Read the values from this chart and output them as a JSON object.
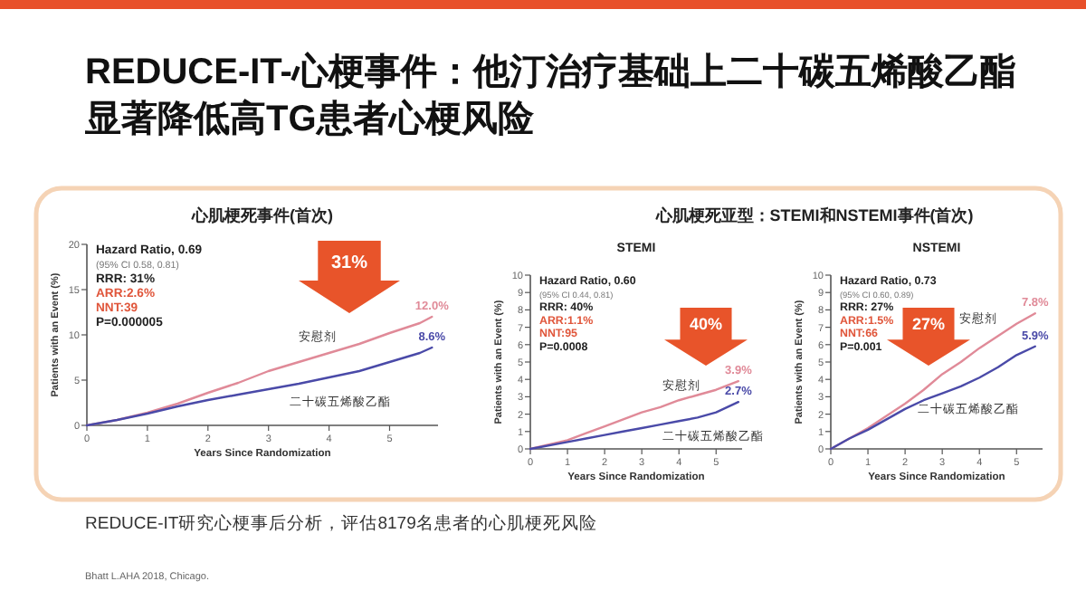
{
  "chart_data": [
    {
      "type": "other",
      "title": "REDUCE-IT-心梗事件：他汀治疗基础上二十碳五烯酸乙酯显著降低高TG患者心梗风险",
      "annotations": [
        "REDUCE-IT研究心梗事后分析，评估8179名患者的心肌梗死风险",
        "Bhatt L.AHA 2018, Chicago."
      ]
    },
    {
      "type": "line",
      "title": "心肌梗死事件(首次)",
      "xlabel": "Years Since Randomization",
      "ylabel": "Patients with an Event (%)",
      "xlim": [
        0,
        5.8
      ],
      "xticks": [
        0,
        1,
        2,
        3,
        4,
        5
      ],
      "ylim": [
        0,
        20
      ],
      "yticks": [
        0,
        5,
        10,
        15,
        20
      ],
      "x": [
        0,
        0.5,
        1,
        1.5,
        2,
        2.5,
        3,
        3.5,
        4,
        4.5,
        5,
        5.5,
        5.7
      ],
      "series": [
        {
          "name": "安慰剂",
          "color": "#e08a98",
          "values": [
            0,
            0.6,
            1.4,
            2.4,
            3.6,
            4.7,
            6.0,
            7.0,
            8.0,
            9.0,
            10.2,
            11.3,
            12.0
          ],
          "value_labels": [
            null,
            null,
            null,
            null,
            null,
            null,
            null,
            null,
            null,
            null,
            null,
            null,
            "12.0%"
          ]
        },
        {
          "name": "二十碳五烯酸乙酯",
          "color": "#4a4aa8",
          "values": [
            0,
            0.6,
            1.3,
            2.1,
            2.8,
            3.4,
            4.0,
            4.6,
            5.3,
            6.0,
            7.0,
            8.0,
            8.6
          ],
          "value_labels": [
            null,
            null,
            null,
            null,
            null,
            null,
            null,
            null,
            null,
            null,
            null,
            null,
            "8.6%"
          ]
        }
      ],
      "annotations": [
        "Hazard Ratio, 0.69",
        "(95% CI 0.58, 0.81)",
        "RRR: 31%",
        "ARR:2.6%",
        "NNT:39",
        "P=0.000005",
        "31%"
      ]
    },
    {
      "type": "line",
      "subtitle": "心肌梗死亚型：STEMI和NSTEMI事件(首次)",
      "title": "STEMI",
      "xlabel": "Years Since Randomization",
      "ylabel": "Patients with an Event (%)",
      "xlim": [
        0,
        5.7
      ],
      "xticks": [
        0,
        1,
        2,
        3,
        4,
        5
      ],
      "ylim": [
        0,
        10
      ],
      "yticks": [
        0,
        1,
        2,
        3,
        4,
        5,
        6,
        7,
        8,
        9,
        10
      ],
      "x": [
        0,
        1,
        1.5,
        2,
        2.5,
        3,
        3.5,
        4,
        4.5,
        5,
        5.6
      ],
      "series": [
        {
          "name": "安慰剂",
          "color": "#e08a98",
          "values": [
            0,
            0.5,
            0.9,
            1.3,
            1.7,
            2.1,
            2.4,
            2.8,
            3.1,
            3.4,
            3.9
          ],
          "value_labels": [
            null,
            null,
            null,
            null,
            null,
            null,
            null,
            null,
            null,
            null,
            "3.9%"
          ]
        },
        {
          "name": "二十碳五烯酸乙酯",
          "color": "#4a4aa8",
          "values": [
            0,
            0.4,
            0.6,
            0.8,
            1.0,
            1.2,
            1.4,
            1.6,
            1.8,
            2.1,
            2.7
          ],
          "value_labels": [
            null,
            null,
            null,
            null,
            null,
            null,
            null,
            null,
            null,
            null,
            "2.7%"
          ]
        }
      ],
      "annotations": [
        "Hazard Ratio, 0.60",
        "(95% CI 0.44, 0.81)",
        "RRR: 40%",
        "ARR:1.1%",
        "NNT:95",
        "P=0.0008",
        "40%"
      ]
    },
    {
      "type": "line",
      "title": "NSTEMI",
      "xlabel": "Years Since Randomization",
      "ylabel": "Patients with an Event (%)",
      "xlim": [
        0,
        5.7
      ],
      "xticks": [
        0,
        1,
        2,
        3,
        4,
        5
      ],
      "ylim": [
        0,
        10
      ],
      "yticks": [
        0,
        1,
        2,
        3,
        4,
        5,
        6,
        7,
        8,
        9,
        10
      ],
      "x": [
        0,
        0.5,
        1,
        1.5,
        2,
        2.5,
        3,
        3.5,
        4,
        4.5,
        5,
        5.5
      ],
      "series": [
        {
          "name": "安慰剂",
          "color": "#e08a98",
          "values": [
            0,
            0.6,
            1.2,
            1.9,
            2.6,
            3.4,
            4.3,
            5.0,
            5.8,
            6.5,
            7.2,
            7.8
          ],
          "value_labels": [
            null,
            null,
            null,
            null,
            null,
            null,
            null,
            null,
            null,
            null,
            null,
            "7.8%"
          ]
        },
        {
          "name": "二十碳五烯酸乙酯",
          "color": "#4a4aa8",
          "values": [
            0,
            0.6,
            1.1,
            1.7,
            2.3,
            2.8,
            3.2,
            3.6,
            4.1,
            4.7,
            5.4,
            5.9
          ],
          "value_labels": [
            null,
            null,
            null,
            null,
            null,
            null,
            null,
            null,
            null,
            null,
            null,
            "5.9%"
          ]
        }
      ],
      "annotations": [
        "Hazard Ratio, 0.73",
        "(95% CI 0.60, 0.89)",
        "RRR: 27%",
        "ARR:1.5%",
        "NNT:66",
        "P=0.001",
        "27%"
      ]
    }
  ]
}
